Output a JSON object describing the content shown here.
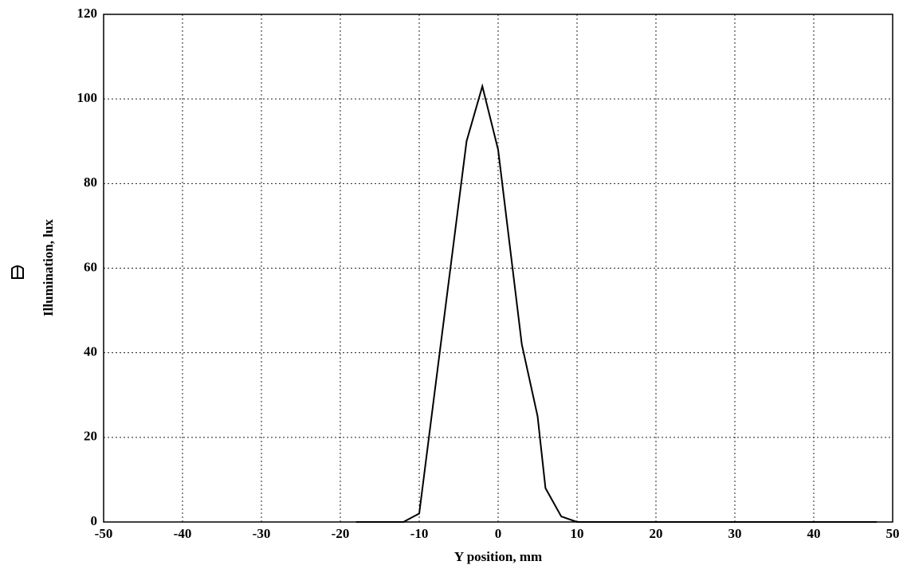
{
  "chart_data": {
    "type": "line",
    "x_label": "Y position, mm",
    "y_label": "Illumination, lux",
    "x": [
      -18,
      -12,
      -10,
      -4,
      -2,
      0,
      3,
      5,
      6,
      8,
      10,
      48
    ],
    "values": [
      0,
      0,
      2,
      90,
      103,
      88,
      42,
      25,
      8,
      1.3,
      0,
      0
    ],
    "color": "#000000",
    "xlim": [
      -50,
      50
    ],
    "xticks": [
      -50,
      -40,
      -30,
      -20,
      -10,
      0,
      10,
      20,
      30,
      40,
      50
    ],
    "ylim": [
      0,
      120
    ],
    "yticks": [
      0,
      20,
      40,
      60,
      80,
      100,
      120
    ],
    "grid": true
  }
}
